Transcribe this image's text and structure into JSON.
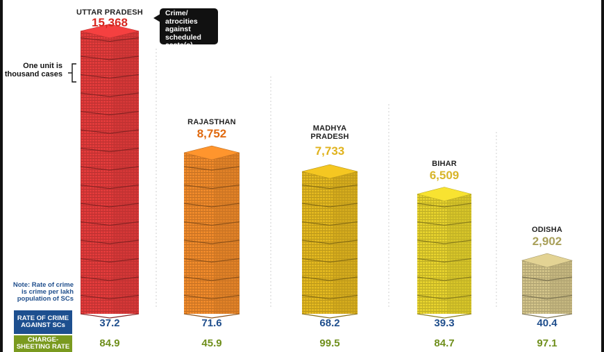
{
  "chart_data": {
    "type": "bar",
    "title": "Crime/atrocities against scheduled caste(s)",
    "unit_note": "One unit is thousand cases",
    "categories": [
      "UTTAR PRADESH",
      "RAJASTHAN",
      "MADHYA PRADESH",
      "BIHAR",
      "ODISHA"
    ],
    "series": [
      {
        "name": "Crime/atrocities against scheduled caste(s)",
        "values": [
          15368,
          8752,
          7733,
          6509,
          2902
        ]
      },
      {
        "name": "RATE OF CRIME AGAINST SCs",
        "values": [
          37.2,
          71.6,
          68.2,
          39.3,
          40.4
        ]
      },
      {
        "name": "CHARGE-SHEETING RATE",
        "values": [
          84.9,
          45.9,
          99.5,
          84.7,
          97.1
        ]
      }
    ],
    "value_labels": [
      "15,368",
      "8,752",
      "7,733",
      "6,509",
      "2,902"
    ],
    "rate_labels": [
      "37.2",
      "71.6",
      "68.2",
      "39.3",
      "40.4"
    ],
    "charge_labels": [
      "84.9",
      "45.9",
      "99.5",
      "84.7",
      "97.1"
    ],
    "colors": [
      "#e33b3b",
      "#f08a2a",
      "#e3b81f",
      "#e6d22d",
      "#d2c389"
    ],
    "value_colors": [
      "#d7261f",
      "#e06a10",
      "#e0b21c",
      "#d8b52a",
      "#a9a05a"
    ],
    "ylim": [
      0,
      16000
    ]
  },
  "labels": {
    "callout": "Crime/ atrocities against scheduled caste(s)",
    "unit_note": "One unit is thousand cases",
    "note": "Note: Rate of crime is crime per lakh population of SCs",
    "rate_label": "RATE OF CRIME AGAINST SCs",
    "charge_label": "CHARGE-SHEETING RATE"
  }
}
